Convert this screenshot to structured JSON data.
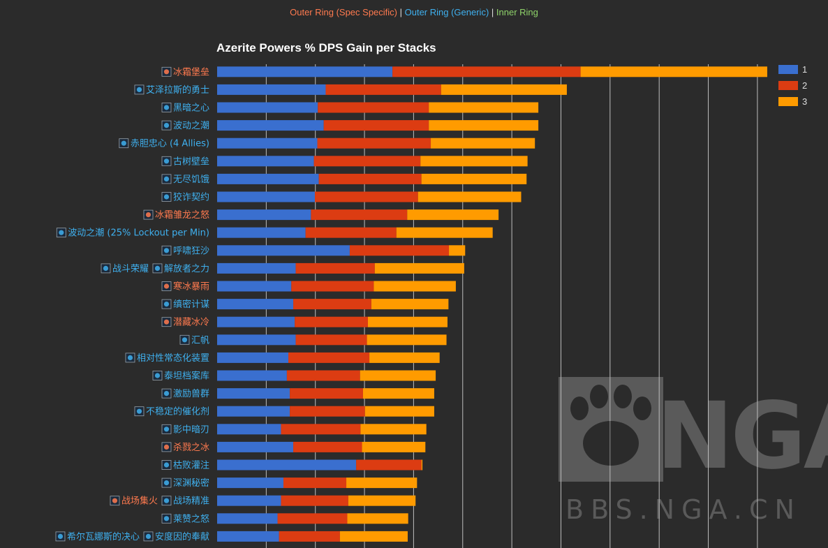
{
  "header_legend": {
    "outer_spec": "Outer Ring (Spec Specific)",
    "separator": " | ",
    "outer_generic": "Outer Ring (Generic)",
    "inner": "Inner Ring"
  },
  "colors": {
    "spec": "#ff7a4f",
    "generic": "#3fb0ef",
    "inner": "#8fd36a",
    "stack1": "#3a6fcf",
    "stack2": "#dc3c12",
    "stack3": "#ff9b00",
    "grid": "#d8d8d8"
  },
  "watermark": {
    "logo_text": "NGA",
    "url": "BBS.NGA.CN"
  },
  "chart_data": {
    "type": "bar",
    "orientation": "horizontal",
    "stacked": true,
    "title": "Azerite Powers % DPS Gain per Stacks",
    "legend": {
      "position": "top-right",
      "entries": [
        "1",
        "2",
        "3"
      ]
    },
    "grid": true,
    "xlim": [
      0,
      11.3
    ],
    "categories": [
      [
        {
          "text": "冰霜堡垒",
          "ring": "spec",
          "icon": "frost-bulwark-icon"
        }
      ],
      [
        {
          "text": "艾泽拉斯的勇士",
          "ring": "generic",
          "icon": "champion-icon"
        }
      ],
      [
        {
          "text": "黑暗之心",
          "ring": "generic",
          "icon": "dark-heart-icon"
        }
      ],
      [
        {
          "text": "波动之潮",
          "ring": "generic",
          "icon": "tidal-surge-icon"
        }
      ],
      [
        {
          "text": "赤胆忠心 (4 Allies)",
          "ring": "generic",
          "icon": "loyalty-icon"
        }
      ],
      [
        {
          "text": "古树壁垒",
          "ring": "generic",
          "icon": "ancient-tree-icon"
        }
      ],
      [
        {
          "text": "无尽饥饿",
          "ring": "generic",
          "icon": "hunger-icon"
        }
      ],
      [
        {
          "text": "狡诈契约",
          "ring": "generic",
          "icon": "pact-icon"
        }
      ],
      [
        {
          "text": "冰霜雏龙之怒",
          "ring": "spec",
          "icon": "whelp-icon"
        }
      ],
      [
        {
          "text": "波动之潮 (25% Lockout per Min)",
          "ring": "generic",
          "icon": "tidal-surge-icon"
        }
      ],
      [
        {
          "text": "呼啸狂沙",
          "ring": "generic",
          "icon": "sands-icon"
        }
      ],
      [
        {
          "text": "战斗荣耀",
          "ring": "generic",
          "icon": "glory-icon"
        },
        {
          "text": "解放者之力",
          "ring": "generic",
          "icon": "liberator-icon"
        }
      ],
      [
        {
          "text": "寒冰暴雨",
          "ring": "spec",
          "icon": "ice-rain-icon"
        }
      ],
      [
        {
          "text": "缜密计谋",
          "ring": "generic",
          "icon": "scheme-icon"
        }
      ],
      [
        {
          "text": "潜藏冰冷",
          "ring": "spec",
          "icon": "hidden-cold-icon"
        }
      ],
      [
        {
          "text": "汇帆",
          "ring": "generic",
          "icon": "sail-icon"
        }
      ],
      [
        {
          "text": "相对性常态化装置",
          "ring": "generic",
          "icon": "normalizer-icon"
        }
      ],
      [
        {
          "text": "泰坦档案库",
          "ring": "generic",
          "icon": "archive-icon"
        }
      ],
      [
        {
          "text": "激励兽群",
          "ring": "generic",
          "icon": "pack-icon"
        }
      ],
      [
        {
          "text": "不稳定的催化剂",
          "ring": "generic",
          "icon": "catalyst-icon"
        }
      ],
      [
        {
          "text": "影中暗刃",
          "ring": "generic",
          "icon": "shadow-blade-icon"
        }
      ],
      [
        {
          "text": "杀戮之冰",
          "ring": "spec",
          "icon": "killer-frost-icon"
        }
      ],
      [
        {
          "text": "枯败灌注",
          "ring": "generic",
          "icon": "blight-icon"
        }
      ],
      [
        {
          "text": "深渊秘密",
          "ring": "generic",
          "icon": "abyss-icon"
        }
      ],
      [
        {
          "text": "战场集火",
          "ring": "spec",
          "icon": "focus-fire-icon"
        },
        {
          "text": "战场精准",
          "ring": "generic",
          "icon": "precision-icon"
        }
      ],
      [
        {
          "text": "莱赞之怒",
          "ring": "generic",
          "icon": "rezan-icon"
        }
      ],
      [
        {
          "text": "希尔瓦娜斯的决心",
          "ring": "generic",
          "icon": "sylvanas-icon"
        },
        {
          "text": "安度因的奉献",
          "ring": "generic",
          "icon": "anduin-icon"
        }
      ]
    ],
    "series": [
      {
        "name": "1",
        "values": [
          3.57,
          2.21,
          2.05,
          2.17,
          2.04,
          1.97,
          2.07,
          1.99,
          1.91,
          1.8,
          2.7,
          1.6,
          1.51,
          1.55,
          1.58,
          1.6,
          1.45,
          1.42,
          1.48,
          1.48,
          1.3,
          1.55,
          2.83,
          1.35,
          1.3,
          1.23,
          1.26
        ]
      },
      {
        "name": "2",
        "values": [
          3.83,
          2.35,
          2.26,
          2.14,
          2.31,
          2.17,
          2.09,
          2.1,
          1.96,
          1.85,
          2.02,
          1.61,
          1.68,
          1.59,
          1.49,
          1.45,
          1.65,
          1.49,
          1.49,
          1.53,
          1.62,
          1.4,
          1.33,
          1.28,
          1.37,
          1.42,
          1.24
        ]
      },
      {
        "name": "3",
        "values": [
          3.8,
          2.56,
          2.23,
          2.23,
          2.12,
          2.18,
          2.14,
          2.1,
          1.86,
          1.96,
          0.33,
          1.82,
          1.67,
          1.57,
          1.62,
          1.62,
          1.43,
          1.54,
          1.45,
          1.41,
          1.34,
          1.29,
          0.02,
          1.44,
          1.37,
          1.24,
          1.38
        ]
      }
    ]
  }
}
